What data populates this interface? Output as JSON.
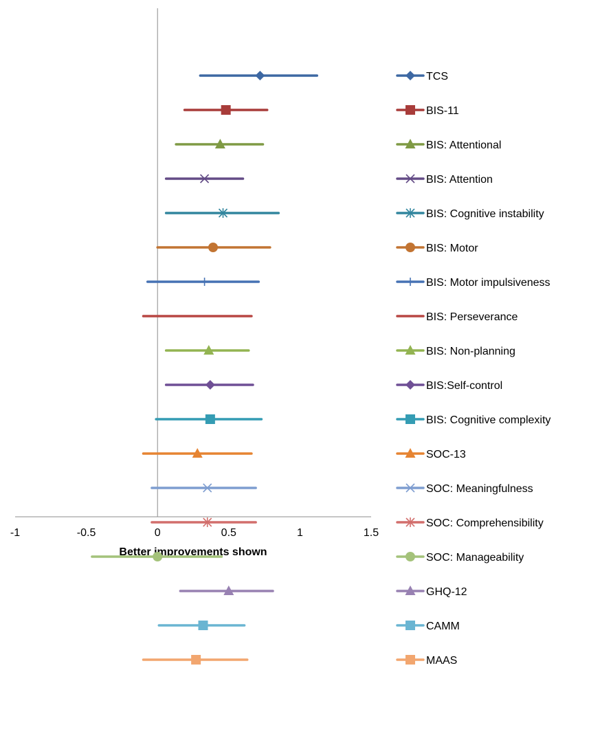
{
  "chart_data": {
    "type": "forest",
    "title": "",
    "xlabel": "Better improvements shown",
    "ylabel": "",
    "xlim": [
      -1,
      1.5
    ],
    "xticks": [
      "-1",
      "-0.5",
      "0",
      "0.5",
      "1",
      "1.5"
    ],
    "xtick_values": [
      -1,
      -0.5,
      0,
      0.5,
      1,
      1.5
    ],
    "grid": false,
    "legend_position": "right",
    "series": [
      {
        "name": "TCS",
        "estimate": 0.72,
        "lower": 0.3,
        "upper": 1.12,
        "color": "#3d68a3",
        "marker": "diamond"
      },
      {
        "name": "BIS-11",
        "estimate": 0.48,
        "lower": 0.19,
        "upper": 0.77,
        "color": "#a83c3a",
        "marker": "square"
      },
      {
        "name": "BIS: Attentional",
        "estimate": 0.44,
        "lower": 0.13,
        "upper": 0.74,
        "color": "#7f9a44",
        "marker": "triangle"
      },
      {
        "name": "BIS: Attention",
        "estimate": 0.33,
        "lower": 0.06,
        "upper": 0.6,
        "color": "#634b86",
        "marker": "x"
      },
      {
        "name": "BIS: Cognitive instability",
        "estimate": 0.46,
        "lower": 0.06,
        "upper": 0.85,
        "color": "#32869e",
        "marker": "star"
      },
      {
        "name": "BIS: Motor",
        "estimate": 0.39,
        "lower": 0.0,
        "upper": 0.79,
        "color": "#c27432",
        "marker": "circle"
      },
      {
        "name": "BIS: Motor impulsiveness",
        "estimate": 0.33,
        "lower": -0.07,
        "upper": 0.71,
        "color": "#4672b4",
        "marker": "plus"
      },
      {
        "name": "BIS: Perseverance",
        "estimate": 0.32,
        "lower": -0.1,
        "upper": 0.66,
        "color": "#b84743",
        "marker": "dash"
      },
      {
        "name": "BIS: Non-planning",
        "estimate": 0.36,
        "lower": 0.06,
        "upper": 0.64,
        "color": "#93b452",
        "marker": "triangle"
      },
      {
        "name": "BIS:Self-control",
        "estimate": 0.37,
        "lower": 0.06,
        "upper": 0.67,
        "color": "#6f4f95",
        "marker": "diamond"
      },
      {
        "name": "BIS: Cognitive complexity",
        "estimate": 0.37,
        "lower": -0.01,
        "upper": 0.73,
        "color": "#349cb3",
        "marker": "square"
      },
      {
        "name": "SOC-13",
        "estimate": 0.28,
        "lower": -0.1,
        "upper": 0.66,
        "color": "#e68432",
        "marker": "triangle"
      },
      {
        "name": "SOC: Meaningfulness",
        "estimate": 0.35,
        "lower": -0.04,
        "upper": 0.69,
        "color": "#7e9dd0",
        "marker": "x"
      },
      {
        "name": "SOC: Comprehensibility",
        "estimate": 0.35,
        "lower": -0.04,
        "upper": 0.69,
        "color": "#d26e6c",
        "marker": "star"
      },
      {
        "name": "SOC: Manageability",
        "estimate": 0.0,
        "lower": -0.46,
        "upper": 0.45,
        "color": "#a4c27a",
        "marker": "circle"
      },
      {
        "name": "GHQ-12",
        "estimate": 0.5,
        "lower": 0.16,
        "upper": 0.81,
        "color": "#9881b2",
        "marker": "triangle"
      },
      {
        "name": "CAMM",
        "estimate": 0.32,
        "lower": 0.01,
        "upper": 0.61,
        "color": "#6ab5d2",
        "marker": "square"
      },
      {
        "name": "MAAS",
        "estimate": 0.27,
        "lower": -0.1,
        "upper": 0.63,
        "color": "#f2a66f",
        "marker": "square"
      }
    ]
  }
}
